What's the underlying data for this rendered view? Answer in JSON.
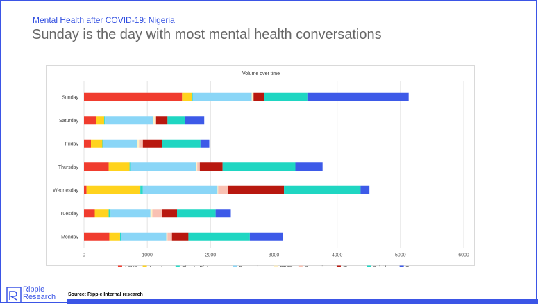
{
  "header": {
    "supertitle": "Mental Health after COVID-19: Nigeria",
    "title": "Sunday is the day with most mental health conversations"
  },
  "footer": {
    "source": "Source: Ripple Internal research",
    "logo_line1": "Ripple",
    "logo_line2": "Research"
  },
  "colors": {
    "accent": "#3b55e6"
  },
  "chart_data": {
    "type": "bar",
    "orientation": "horizontal",
    "stacked": true,
    "title": "Volume over time",
    "xlim": [
      0,
      6000
    ],
    "xticks": [
      "0",
      "1000",
      "2000",
      "3000",
      "4000",
      "5000",
      "6000"
    ],
    "grid": true,
    "legend_position": "bottom",
    "categories": [
      "Sunday",
      "Saturday",
      "Friday",
      "Thursday",
      "Wednesday",
      "Tuesday",
      "Monday"
    ],
    "series": [
      {
        "name": "ADHD",
        "color": "#f03c2e",
        "values": [
          1550,
          190,
          110,
          390,
          40,
          170,
          400
        ]
      },
      {
        "name": "Anxiety",
        "color": "#ffd31d",
        "values": [
          160,
          130,
          180,
          330,
          850,
          220,
          170
        ]
      },
      {
        "name": "Climate Distress",
        "color": "#2ad9c6",
        "values": [
          10,
          10,
          10,
          10,
          40,
          30,
          20
        ]
      },
      {
        "name": "Depression",
        "color": "#8ad6f7",
        "values": [
          930,
          760,
          540,
          1040,
          1180,
          630,
          710
        ]
      },
      {
        "name": "PTSD",
        "color": "#fff1c4",
        "values": [
          20,
          30,
          30,
          20,
          10,
          30,
          20
        ]
      },
      {
        "name": "Reopening",
        "color": "#f9c1b3",
        "values": [
          10,
          20,
          60,
          40,
          160,
          150,
          70
        ]
      },
      {
        "name": "Stress",
        "color": "#b8180f",
        "values": [
          170,
          180,
          300,
          360,
          880,
          240,
          260
        ]
      },
      {
        "name": "Suicide",
        "color": "#1fd6c2",
        "values": [
          680,
          280,
          610,
          1150,
          1210,
          610,
          970
        ]
      },
      {
        "name": "Trauma",
        "color": "#3d5ae8",
        "values": [
          1600,
          300,
          140,
          430,
          140,
          240,
          520
        ]
      }
    ]
  }
}
